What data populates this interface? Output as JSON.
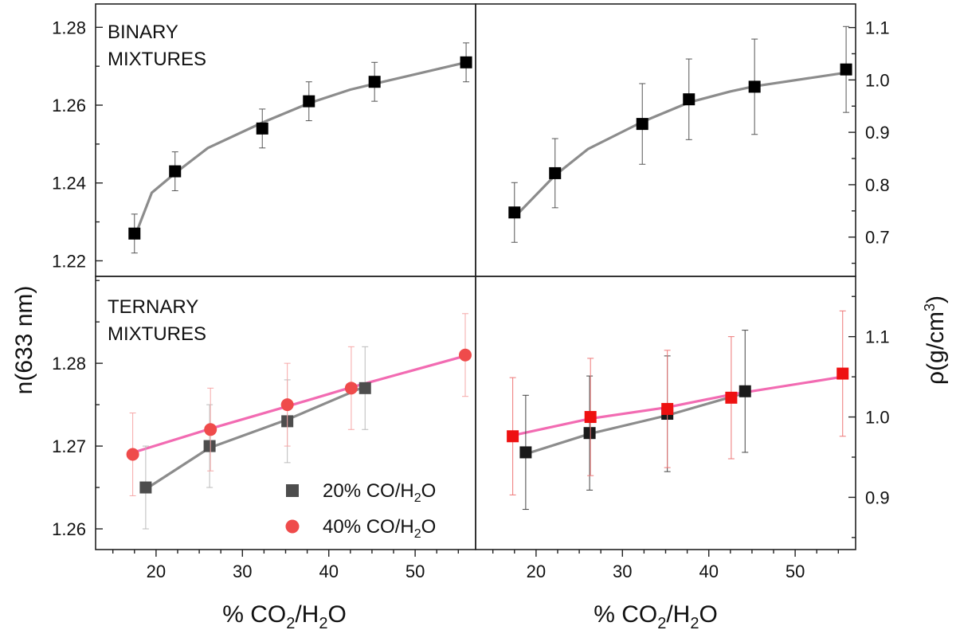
{
  "chart_data": {
    "type": "scatter",
    "shared": {
      "x_title_left": "% CO2/H2O",
      "x_title_right": "% CO2/H2O",
      "x_title_main": "% CO",
      "x_title_sub1": "2",
      "x_title_mid": "/H",
      "x_title_sub2": "2",
      "x_title_end": "O",
      "left_y_title": "n(633 nm)",
      "right_y_title_main": "ρ(g/cm",
      "right_y_title_sup": "3",
      "right_y_title_end": ")",
      "xlim": [
        13,
        57
      ],
      "x_ticks": [
        20,
        30,
        40,
        50
      ],
      "x_tick_labels": [
        "20",
        "30",
        "40",
        "50"
      ]
    },
    "panels": [
      {
        "id": "binary-refractive-index",
        "label_lines": [
          "BINARY",
          "MIXTURES"
        ],
        "ylim": [
          1.216,
          1.286
        ],
        "y_ticks": [
          1.22,
          1.24,
          1.26,
          1.28
        ],
        "y_tick_labels": [
          "1.22",
          "1.24",
          "1.26",
          "1.28"
        ],
        "y_axis_side": "left",
        "series": [
          {
            "name": "binary",
            "marker": "square",
            "color": "#000000",
            "error_color": "#555555",
            "points": [
              {
                "x": 17.5,
                "y": 1.227,
                "err": 0.005
              },
              {
                "x": 22.2,
                "y": 1.243,
                "err": 0.005
              },
              {
                "x": 32.3,
                "y": 1.254,
                "err": 0.005
              },
              {
                "x": 37.7,
                "y": 1.261,
                "err": 0.005
              },
              {
                "x": 45.3,
                "y": 1.266,
                "err": 0.005
              },
              {
                "x": 55.9,
                "y": 1.271,
                "err": 0.005
              }
            ]
          }
        ],
        "fits": [
          {
            "color": "#8c8c8c",
            "points": [
              [
                17.5,
                1.226
              ],
              [
                19.5,
                1.2375
              ],
              [
                22.2,
                1.2425
              ],
              [
                26.0,
                1.249
              ],
              [
                32.3,
                1.2555
              ],
              [
                37.7,
                1.2605
              ],
              [
                42.5,
                1.264
              ],
              [
                45.3,
                1.2655
              ],
              [
                55.9,
                1.271
              ]
            ]
          }
        ]
      },
      {
        "id": "binary-density",
        "label_lines": [],
        "ylim": [
          0.625,
          1.145
        ],
        "y_ticks": [
          0.7,
          0.8,
          0.9,
          1.0,
          1.1
        ],
        "y_tick_labels": [
          "0.7",
          "0.8",
          "0.9",
          "1.0",
          "1.1"
        ],
        "y_axis_side": "right",
        "series": [
          {
            "name": "binary",
            "marker": "square",
            "color": "#000000",
            "error_color": "#555555",
            "points": [
              {
                "x": 17.5,
                "y": 0.747,
                "err": 0.057
              },
              {
                "x": 22.2,
                "y": 0.822,
                "err": 0.066
              },
              {
                "x": 32.3,
                "y": 0.916,
                "err": 0.077
              },
              {
                "x": 37.7,
                "y": 0.963,
                "err": 0.077
              },
              {
                "x": 45.3,
                "y": 0.987,
                "err": 0.091
              },
              {
                "x": 55.9,
                "y": 1.02,
                "err": 0.082
              }
            ]
          }
        ],
        "fits": [
          {
            "color": "#8c8c8c",
            "points": [
              [
                17.5,
                0.738
              ],
              [
                22.2,
                0.818
              ],
              [
                26.0,
                0.868
              ],
              [
                32.3,
                0.92
              ],
              [
                37.7,
                0.957
              ],
              [
                42.5,
                0.978
              ],
              [
                45.3,
                0.988
              ],
              [
                55.9,
                1.014
              ]
            ]
          }
        ]
      },
      {
        "id": "ternary-refractive-index",
        "label_lines": [
          "TERNARY",
          "MIXTURES"
        ],
        "ylim": [
          1.2575,
          1.2905
        ],
        "y_ticks": [
          1.26,
          1.27,
          1.28
        ],
        "y_tick_labels": [
          "1.26",
          "1.27",
          "1.28"
        ],
        "y_axis_side": "left",
        "series": [
          {
            "name": "20% CO/H2O",
            "marker": "square",
            "color": "#4d4d4d",
            "error_color": "#bbbbbb",
            "points": [
              {
                "x": 18.8,
                "y": 1.265,
                "err": 0.005
              },
              {
                "x": 26.2,
                "y": 1.27,
                "err": 0.005
              },
              {
                "x": 35.2,
                "y": 1.273,
                "err": 0.005
              },
              {
                "x": 44.2,
                "y": 1.277,
                "err": 0.005
              }
            ]
          },
          {
            "name": "40% CO/H2O",
            "marker": "circle",
            "color": "#ef4b4b",
            "error_color": "#f6a8a8",
            "points": [
              {
                "x": 17.3,
                "y": 1.269,
                "err": 0.005
              },
              {
                "x": 26.3,
                "y": 1.272,
                "err": 0.005
              },
              {
                "x": 35.2,
                "y": 1.275,
                "err": 0.005
              },
              {
                "x": 42.6,
                "y": 1.277,
                "err": 0.005
              },
              {
                "x": 55.8,
                "y": 1.281,
                "err": 0.005
              }
            ]
          }
        ],
        "fits": [
          {
            "color": "#8c8c8c",
            "points": [
              [
                18.8,
                1.2648
              ],
              [
                26.2,
                1.2698
              ],
              [
                35.2,
                1.2732
              ],
              [
                44.2,
                1.2772
              ]
            ]
          },
          {
            "color": "#f26bb2",
            "points": [
              [
                17.3,
                1.2692
              ],
              [
                26.3,
                1.2721
              ],
              [
                35.2,
                1.2748
              ],
              [
                42.6,
                1.2771
              ],
              [
                55.8,
                1.2809
              ]
            ]
          }
        ],
        "legend": [
          {
            "label_main": "20% CO/H",
            "label_sub": "2",
            "label_end": "O",
            "marker": "square",
            "color": "#4d4d4d"
          },
          {
            "label_main": "40% CO/H",
            "label_sub": "2",
            "label_end": "O",
            "marker": "circle",
            "color": "#ef4b4b"
          }
        ]
      },
      {
        "id": "ternary-density",
        "label_lines": [],
        "ylim": [
          0.835,
          1.175
        ],
        "y_ticks": [
          0.9,
          1.0,
          1.1
        ],
        "y_tick_labels": [
          "0.9",
          "1.0",
          "1.1"
        ],
        "y_axis_side": "right",
        "series": [
          {
            "name": "20% CO/H2O",
            "marker": "square",
            "color": "#1a1a1a",
            "error_color": "#444444",
            "points": [
              {
                "x": 18.8,
                "y": 0.956,
                "err": 0.071
              },
              {
                "x": 26.2,
                "y": 0.98,
                "err": 0.071
              },
              {
                "x": 35.2,
                "y": 1.004,
                "err": 0.072
              },
              {
                "x": 44.2,
                "y": 1.032,
                "err": 0.076
              }
            ]
          },
          {
            "name": "40% CO/H2O",
            "marker": "square",
            "color": "#ee1111",
            "error_color": "#ee7777",
            "points": [
              {
                "x": 17.3,
                "y": 0.976,
                "err": 0.073
              },
              {
                "x": 26.3,
                "y": 1.0,
                "err": 0.073
              },
              {
                "x": 35.2,
                "y": 1.01,
                "err": 0.073
              },
              {
                "x": 42.6,
                "y": 1.024,
                "err": 0.076
              },
              {
                "x": 55.5,
                "y": 1.054,
                "err": 0.078
              }
            ]
          }
        ],
        "fits": [
          {
            "color": "#8c8c8c",
            "points": [
              [
                18.8,
                0.954
              ],
              [
                26.2,
                0.979
              ],
              [
                35.2,
                1.002
              ],
              [
                44.2,
                1.03
              ]
            ]
          },
          {
            "color": "#f26bb2",
            "points": [
              [
                17.3,
                0.977
              ],
              [
                26.3,
                0.998
              ],
              [
                35.2,
                1.012
              ],
              [
                42.6,
                1.028
              ],
              [
                55.5,
                1.05
              ]
            ]
          }
        ]
      }
    ]
  }
}
